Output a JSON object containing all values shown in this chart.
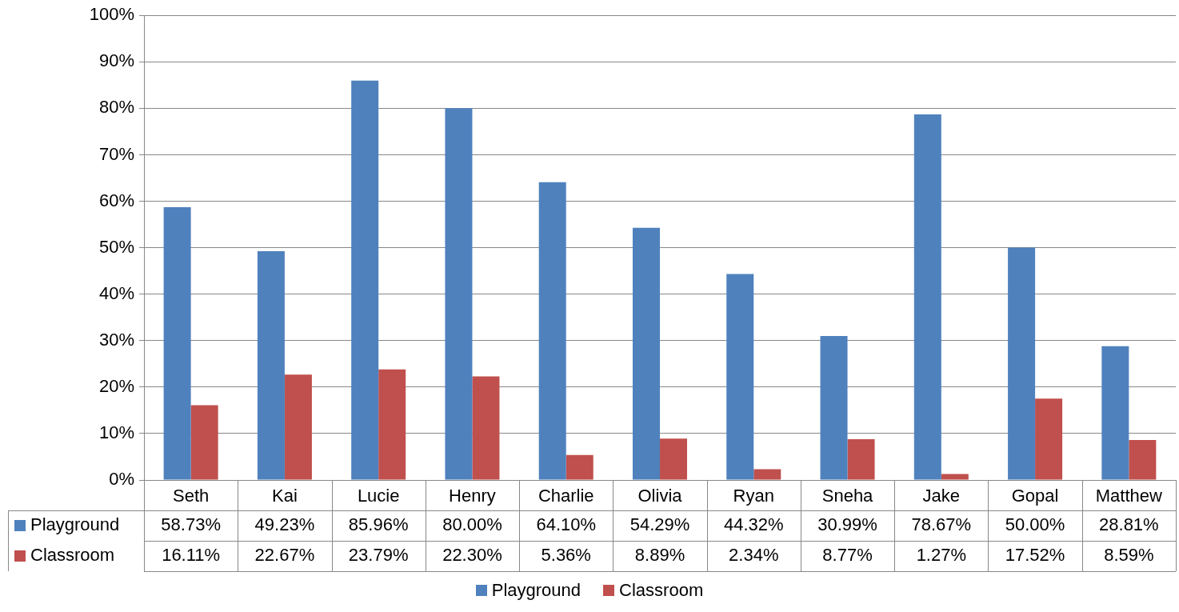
{
  "chart_data": {
    "type": "bar",
    "categories": [
      "Seth",
      "Kai",
      "Lucie",
      "Henry",
      "Charlie",
      "Olivia",
      "Ryan",
      "Sneha",
      "Jake",
      "Gopal",
      "Matthew"
    ],
    "series": [
      {
        "name": "Playground",
        "color": "#4f81bd",
        "values": [
          58.73,
          49.23,
          85.96,
          80.0,
          64.1,
          54.29,
          44.32,
          30.99,
          78.67,
          50.0,
          28.81
        ],
        "value_labels": [
          "58.73%",
          "49.23%",
          "85.96%",
          "80.00%",
          "64.10%",
          "54.29%",
          "44.32%",
          "30.99%",
          "78.67%",
          "50.00%",
          "28.81%"
        ]
      },
      {
        "name": "Classroom",
        "color": "#c0504d",
        "values": [
          16.11,
          22.67,
          23.79,
          22.3,
          5.36,
          8.89,
          2.34,
          8.77,
          1.27,
          17.52,
          8.59
        ],
        "value_labels": [
          "16.11%",
          "22.67%",
          "23.79%",
          "22.30%",
          "5.36%",
          "8.89%",
          "2.34%",
          "8.77%",
          "1.27%",
          "17.52%",
          "8.59%"
        ]
      }
    ],
    "ylim": [
      0,
      100
    ],
    "yticks": [
      {
        "value": 0,
        "label": "0%"
      },
      {
        "value": 10,
        "label": "10%"
      },
      {
        "value": 20,
        "label": "20%"
      },
      {
        "value": 30,
        "label": "30%"
      },
      {
        "value": 40,
        "label": "40%"
      },
      {
        "value": 50,
        "label": "50%"
      },
      {
        "value": 60,
        "label": "60%"
      },
      {
        "value": 70,
        "label": "70%"
      },
      {
        "value": 80,
        "label": "80%"
      },
      {
        "value": 90,
        "label": "90%"
      },
      {
        "value": 100,
        "label": "100%"
      }
    ],
    "grid": "y",
    "legend": "bottom"
  }
}
